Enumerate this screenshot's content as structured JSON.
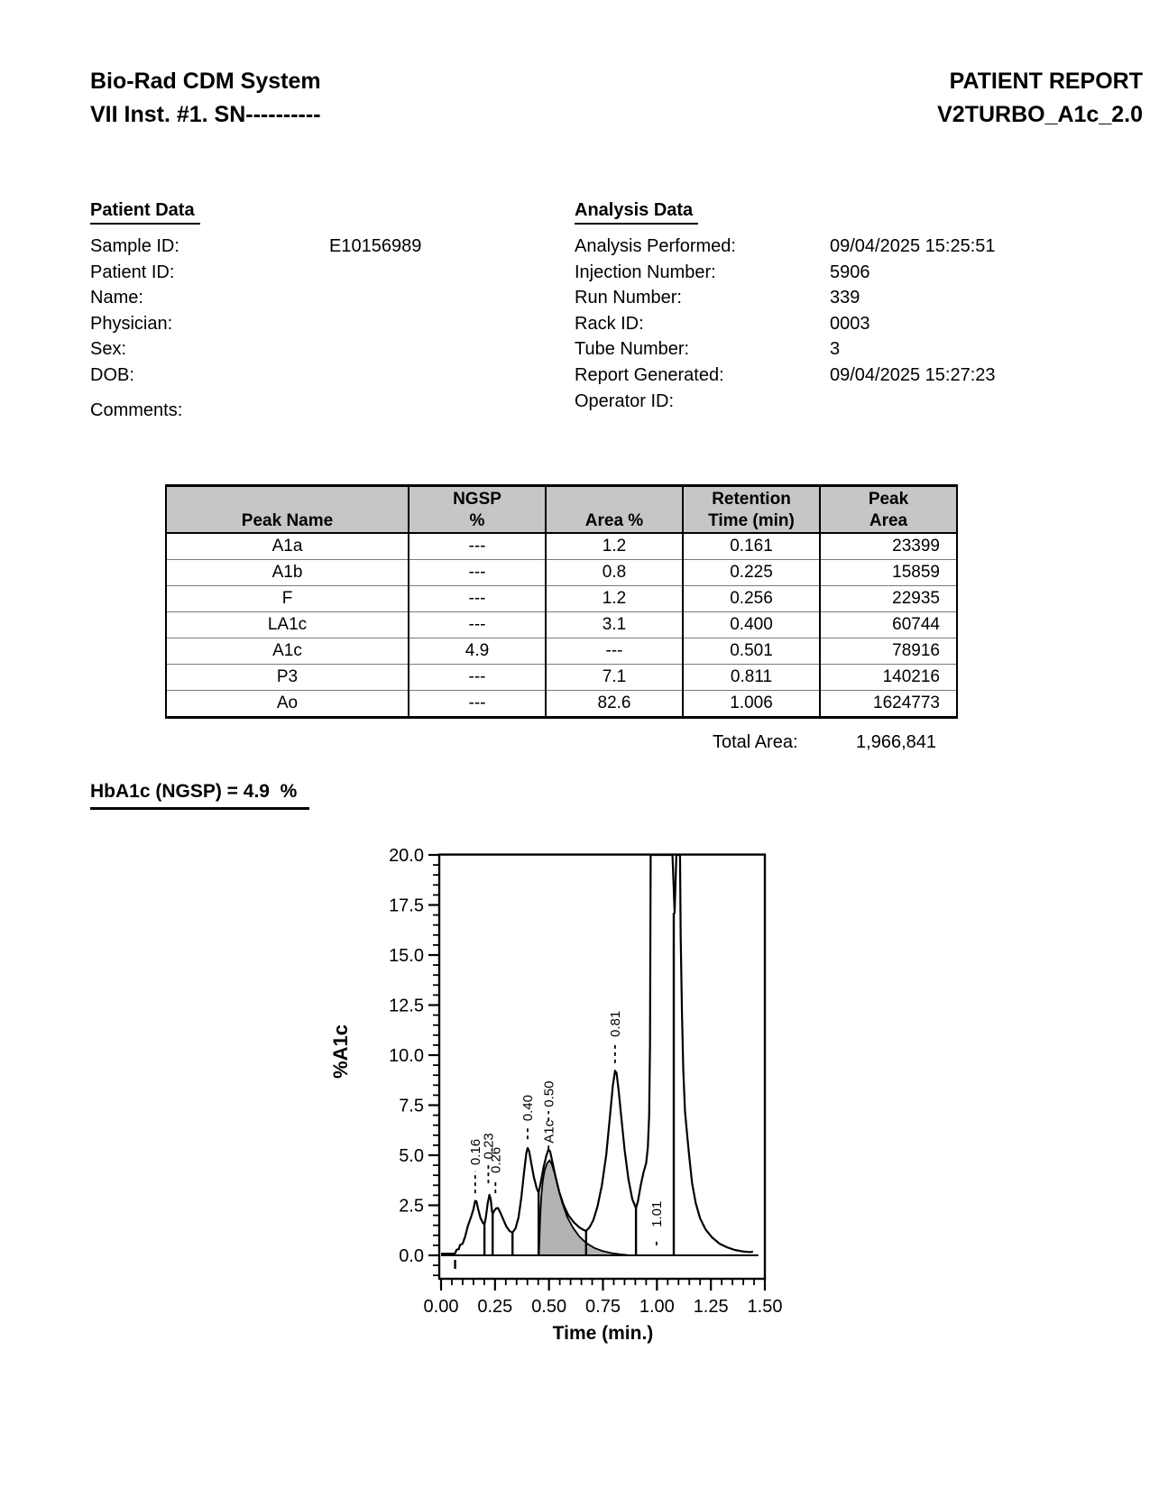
{
  "header": {
    "left_line1": "Bio-Rad CDM System",
    "left_line2": "VII Inst. #1. SN----------",
    "right_line1": "PATIENT REPORT",
    "right_line2": "V2TURBO_A1c_2.0"
  },
  "patient_data": {
    "title": "Patient Data",
    "rows": [
      {
        "label": "Sample ID:",
        "value": "E10156989"
      },
      {
        "label": "Patient ID:",
        "value": ""
      },
      {
        "label": "Name:",
        "value": ""
      },
      {
        "label": "Physician:",
        "value": ""
      },
      {
        "label": "Sex:",
        "value": ""
      },
      {
        "label": "DOB:",
        "value": ""
      }
    ],
    "comments_label": "Comments:",
    "comments_value": ""
  },
  "analysis_data": {
    "title": "Analysis Data",
    "rows": [
      {
        "label": "Analysis Performed:",
        "value": "09/04/2025 15:25:51"
      },
      {
        "label": "Injection Number:",
        "value": "5906"
      },
      {
        "label": "Run Number:",
        "value": "339"
      },
      {
        "label": "Rack ID:",
        "value": "0003"
      },
      {
        "label": "Tube Number:",
        "value": "3"
      },
      {
        "label": "Report Generated:",
        "value": "09/04/2025 15:27:23"
      },
      {
        "label": "Operator ID:",
        "value": ""
      }
    ]
  },
  "peak_table": {
    "headers": [
      {
        "l1": "",
        "l2": "Peak Name"
      },
      {
        "l1": "NGSP",
        "l2": "%"
      },
      {
        "l1": "",
        "l2": "Area %"
      },
      {
        "l1": "Retention",
        "l2": "Time (min)"
      },
      {
        "l1": "Peak",
        "l2": "Area"
      }
    ],
    "rows": [
      {
        "name": "A1a",
        "ngsp": "---",
        "area": "1.2",
        "rt": "0.161",
        "parea": "23399"
      },
      {
        "name": "A1b",
        "ngsp": "---",
        "area": "0.8",
        "rt": "0.225",
        "parea": "15859"
      },
      {
        "name": "F",
        "ngsp": "---",
        "area": "1.2",
        "rt": "0.256",
        "parea": "22935"
      },
      {
        "name": "LA1c",
        "ngsp": "---",
        "area": "3.1",
        "rt": "0.400",
        "parea": "60744"
      },
      {
        "name": "A1c",
        "ngsp": "4.9",
        "area": "---",
        "rt": "0.501",
        "parea": "78916"
      },
      {
        "name": "P3",
        "ngsp": "---",
        "area": "7.1",
        "rt": "0.811",
        "parea": "140216"
      },
      {
        "name": "Ao",
        "ngsp": "---",
        "area": "82.6",
        "rt": "1.006",
        "parea": "1624773"
      }
    ]
  },
  "total_area": {
    "label": "Total Area:",
    "value": "1,966,841"
  },
  "result": {
    "text": "HbA1c (NGSP) = 4.9  %"
  },
  "chart_data": {
    "type": "line",
    "title": "",
    "xlabel": "Time (min.)",
    "ylabel": "%A1c",
    "xlim": [
      0,
      1.5
    ],
    "ylim": [
      0,
      20
    ],
    "x_major": 0.25,
    "x_minor": 0.05,
    "y_major": 2.5,
    "y_minor": 0.5,
    "x_tick_labels": [
      "0.00",
      "0.25",
      "0.50",
      "0.75",
      "1.00",
      "1.25",
      "1.50"
    ],
    "y_tick_labels": [
      "0.0",
      "2.5",
      "5.0",
      "7.5",
      "10.0",
      "12.5",
      "15.0",
      "17.5",
      "20.0"
    ],
    "grid": false,
    "legend": "none",
    "colors": {
      "line": "#000000",
      "shaded_fill": "#b3b3b3",
      "background": "#ffffff"
    },
    "series": [
      {
        "name": "total-signal",
        "points": [
          [
            0.0,
            0.08
          ],
          [
            0.055,
            0.08
          ],
          [
            0.065,
            0.1
          ],
          [
            0.072,
            0.28
          ],
          [
            0.082,
            0.31
          ],
          [
            0.088,
            0.52
          ],
          [
            0.1,
            0.58
          ],
          [
            0.112,
            0.95
          ],
          [
            0.125,
            1.5
          ],
          [
            0.14,
            1.95
          ],
          [
            0.15,
            2.3
          ],
          [
            0.158,
            2.72
          ],
          [
            0.164,
            2.7
          ],
          [
            0.172,
            2.3
          ],
          [
            0.183,
            1.85
          ],
          [
            0.194,
            1.62
          ],
          [
            0.201,
            1.55
          ],
          [
            0.207,
            1.85
          ],
          [
            0.216,
            2.6
          ],
          [
            0.224,
            3.02
          ],
          [
            0.23,
            2.8
          ],
          [
            0.236,
            2.2
          ],
          [
            0.239,
            2.06
          ],
          [
            0.246,
            2.22
          ],
          [
            0.256,
            2.35
          ],
          [
            0.264,
            2.36
          ],
          [
            0.274,
            2.15
          ],
          [
            0.288,
            1.8
          ],
          [
            0.302,
            1.45
          ],
          [
            0.317,
            1.22
          ],
          [
            0.331,
            1.13
          ],
          [
            0.345,
            1.35
          ],
          [
            0.359,
            1.9
          ],
          [
            0.372,
            2.9
          ],
          [
            0.384,
            4.1
          ],
          [
            0.395,
            5.1
          ],
          [
            0.401,
            5.36
          ],
          [
            0.408,
            5.2
          ],
          [
            0.418,
            4.6
          ],
          [
            0.43,
            3.9
          ],
          [
            0.443,
            3.35
          ],
          [
            0.452,
            3.12
          ],
          [
            0.462,
            3.65
          ],
          [
            0.474,
            4.35
          ],
          [
            0.487,
            4.95
          ],
          [
            0.497,
            5.28
          ],
          [
            0.505,
            5.2
          ],
          [
            0.515,
            4.7
          ],
          [
            0.53,
            3.95
          ],
          [
            0.548,
            3.15
          ],
          [
            0.568,
            2.5
          ],
          [
            0.59,
            2.0
          ],
          [
            0.615,
            1.65
          ],
          [
            0.64,
            1.4
          ],
          [
            0.66,
            1.27
          ],
          [
            0.672,
            1.22
          ],
          [
            0.688,
            1.4
          ],
          [
            0.705,
            1.75
          ],
          [
            0.725,
            2.45
          ],
          [
            0.745,
            3.5
          ],
          [
            0.765,
            5.0
          ],
          [
            0.782,
            6.9
          ],
          [
            0.796,
            8.5
          ],
          [
            0.806,
            9.22
          ],
          [
            0.813,
            9.1
          ],
          [
            0.822,
            8.3
          ],
          [
            0.835,
            6.9
          ],
          [
            0.85,
            5.3
          ],
          [
            0.868,
            3.8
          ],
          [
            0.886,
            2.8
          ],
          [
            0.903,
            2.36
          ],
          [
            0.912,
            2.7
          ],
          [
            0.925,
            3.5
          ],
          [
            0.938,
            4.15
          ],
          [
            0.95,
            4.6
          ],
          [
            0.958,
            5.4
          ],
          [
            0.964,
            7.0
          ],
          [
            0.968,
            10.5
          ],
          [
            0.971,
            20.0
          ],
          [
            1.072,
            20.0
          ],
          [
            1.082,
            17.1
          ],
          [
            1.09,
            20.0
          ],
          [
            1.107,
            20.0
          ],
          [
            1.11,
            16.0
          ],
          [
            1.116,
            12.1
          ],
          [
            1.122,
            9.3
          ],
          [
            1.13,
            7.2
          ],
          [
            1.141,
            5.9
          ],
          [
            1.152,
            4.7
          ],
          [
            1.163,
            3.6
          ],
          [
            1.18,
            2.6
          ],
          [
            1.2,
            1.85
          ],
          [
            1.225,
            1.3
          ],
          [
            1.255,
            0.9
          ],
          [
            1.29,
            0.58
          ],
          [
            1.325,
            0.4
          ],
          [
            1.36,
            0.27
          ],
          [
            1.4,
            0.19
          ],
          [
            1.43,
            0.16
          ],
          [
            1.445,
            0.18
          ]
        ]
      },
      {
        "name": "a1c-shaded-peak",
        "shaded": true,
        "points": [
          [
            0.453,
            0.0
          ],
          [
            0.456,
            0.8
          ],
          [
            0.459,
            1.8
          ],
          [
            0.464,
            2.9
          ],
          [
            0.471,
            3.7
          ],
          [
            0.48,
            4.25
          ],
          [
            0.492,
            4.62
          ],
          [
            0.503,
            4.74
          ],
          [
            0.513,
            4.55
          ],
          [
            0.527,
            4.05
          ],
          [
            0.543,
            3.35
          ],
          [
            0.562,
            2.6
          ],
          [
            0.585,
            1.9
          ],
          [
            0.61,
            1.4
          ],
          [
            0.64,
            0.95
          ],
          [
            0.672,
            0.62
          ],
          [
            0.71,
            0.37
          ],
          [
            0.75,
            0.21
          ],
          [
            0.79,
            0.11
          ],
          [
            0.83,
            0.05
          ],
          [
            0.86,
            0.02
          ]
        ]
      }
    ],
    "drop_lines": [
      [
        0.201,
        1.55
      ],
      [
        0.239,
        2.06
      ],
      [
        0.331,
        1.13
      ],
      [
        0.452,
        3.12
      ],
      [
        0.672,
        1.22
      ],
      [
        0.903,
        2.36
      ],
      [
        1.078,
        17.1
      ]
    ],
    "peak_labels": [
      {
        "text": "0.16",
        "t": 0.158,
        "text_bottom": 4.5,
        "dash": [
          3.1,
          4.2
        ]
      },
      {
        "text": "0.23",
        "t": 0.219,
        "text_bottom": 4.8,
        "dash": [
          3.6,
          4.5
        ]
      },
      {
        "text": "0.26",
        "t": 0.252,
        "text_bottom": 4.1,
        "dash": [
          3.1,
          3.8
        ]
      },
      {
        "text": "0.40",
        "t": 0.401,
        "text_bottom": 6.7,
        "dash": [
          5.8,
          6.4
        ]
      },
      {
        "text": "0.50",
        "t": 0.498,
        "text_bottom": 7.4,
        "dash": [
          6.7,
          7.2
        ]
      },
      {
        "text": "A1c",
        "t": 0.498,
        "text_bottom": 5.6,
        "dash": [
          5.3,
          5.5
        ]
      },
      {
        "text": "0.81",
        "t": 0.806,
        "text_bottom": 10.9,
        "dash": [
          9.6,
          10.5
        ]
      },
      {
        "text": "1.01",
        "t": 0.998,
        "text_bottom": 1.4,
        "dash": [
          0.5,
          0.8
        ]
      }
    ],
    "injection_mark_t": 0.065,
    "baseline_end_t": 1.47
  }
}
